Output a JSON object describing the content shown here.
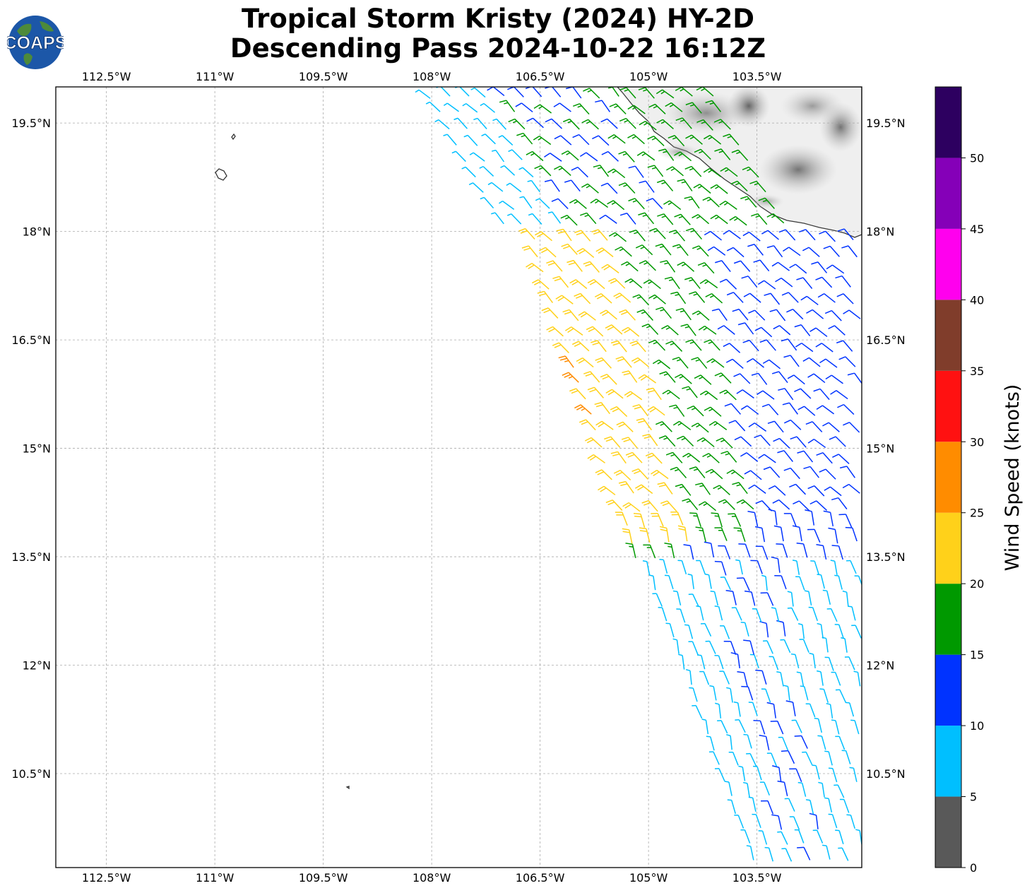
{
  "title": {
    "line1": "Tropical Storm Kristy (2024) HY-2D",
    "line2": "Descending Pass 2024-10-22 16:12Z"
  },
  "logo": {
    "text": "COAPS",
    "ocean_color": "#1c57a8",
    "land_color": "#4d8a3a"
  },
  "map": {
    "extent": {
      "lon_min": -113.2,
      "lon_max": -102.05,
      "lat_min": 9.2,
      "lat_max": 20.0
    },
    "lon_ticks": [
      {
        "value": -112.5,
        "label": "112.5°W"
      },
      {
        "value": -111.0,
        "label": "111°W"
      },
      {
        "value": -109.5,
        "label": "109.5°W"
      },
      {
        "value": -108.0,
        "label": "108°W"
      },
      {
        "value": -106.5,
        "label": "106.5°W"
      },
      {
        "value": -105.0,
        "label": "105°W"
      },
      {
        "value": -103.5,
        "label": "103.5°W"
      }
    ],
    "lat_ticks": [
      {
        "value": 19.5,
        "label": "19.5°N"
      },
      {
        "value": 18.0,
        "label": "18°N"
      },
      {
        "value": 16.5,
        "label": "16.5°N"
      },
      {
        "value": 15.0,
        "label": "15°N"
      },
      {
        "value": 13.5,
        "label": "13.5°N"
      },
      {
        "value": 12.0,
        "label": "12°N"
      },
      {
        "value": 10.5,
        "label": "10.5°N"
      }
    ],
    "gridlines": true,
    "land_shading": "grayscale terrain, Mexico coast (top-right)"
  },
  "colorbar": {
    "label": "Wind Speed (knots)",
    "bins": [
      {
        "min": 0,
        "max": 5,
        "color": "#595959"
      },
      {
        "min": 5,
        "max": 10,
        "color": "#00bfff"
      },
      {
        "min": 10,
        "max": 15,
        "color": "#0033ff"
      },
      {
        "min": 15,
        "max": 20,
        "color": "#009900"
      },
      {
        "min": 20,
        "max": 25,
        "color": "#ffd11a"
      },
      {
        "min": 25,
        "max": 30,
        "color": "#ff8c00"
      },
      {
        "min": 30,
        "max": 35,
        "color": "#ff1111"
      },
      {
        "min": 35,
        "max": 40,
        "color": "#803d2b"
      },
      {
        "min": 40,
        "max": 45,
        "color": "#ff00ee"
      },
      {
        "min": 45,
        "max": 50,
        "color": "#8500b8"
      },
      {
        "min": 50,
        "max": 55,
        "color": "#2d0060"
      }
    ],
    "ticks": [
      0,
      5,
      10,
      15,
      20,
      25,
      30,
      35,
      40,
      45,
      50
    ]
  },
  "chart_data": {
    "type": "wind-barb map",
    "swath_ranges": [
      {
        "lat_min": 17.9,
        "lat_max": 20.0,
        "west_lon": [
          -108.1,
          -106.9
        ],
        "east_lon": [
          -104.0,
          -103.0
        ]
      },
      {
        "lat_min": 13.3,
        "lat_max": 17.9,
        "west_lon": [
          -106.6,
          -105.1
        ],
        "east_lon": [
          -102.05,
          -102.05
        ]
      },
      {
        "lat_min": 9.2,
        "lat_max": 13.3,
        "west_lon": [
          -105.0,
          -103.5
        ],
        "east_lon": [
          -102.05,
          -102.05
        ]
      }
    ],
    "speed_ranges_kt": [
      {
        "area": "northwest swath edge",
        "min": 5,
        "max": 10
      },
      {
        "area": "northern swath interior",
        "min": 10,
        "max": 20
      },
      {
        "area": "western swath edge 14-17.5N",
        "min": 20,
        "max": 25
      },
      {
        "area": "isolated west-edge barbs near 16N and 15.4N",
        "min": 25,
        "max": 30
      },
      {
        "area": "central swath 14-18N",
        "min": 15,
        "max": 20
      },
      {
        "area": "eastern swath 12-17.5N",
        "min": 10,
        "max": 15
      },
      {
        "area": "southern swath 9.2-13.3N",
        "min": 5,
        "max": 15
      }
    ],
    "wind_direction": "mostly from the northwest in the north and from the south-southwest in the south"
  }
}
